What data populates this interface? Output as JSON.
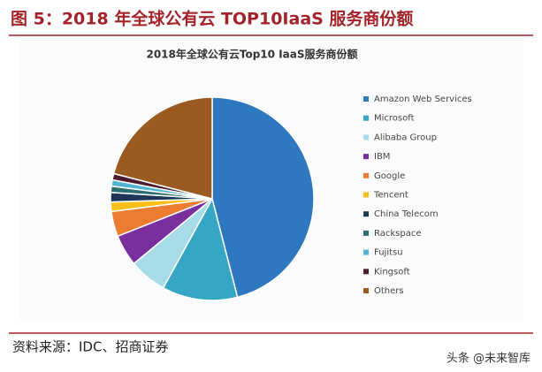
{
  "header": {
    "title": "图 5：2018 年全球公有云 TOP10IaaS 服务商份额"
  },
  "chart_data": {
    "type": "pie",
    "title": "2018年全球公有云Top10 IaaS服务商份额",
    "categories": [
      "Amazon Web Services",
      "Microsoft",
      "Alibaba Group",
      "IBM",
      "Google",
      "Tencent",
      "China Telecom",
      "Rackspace",
      "Fujitsu",
      "Kingsoft",
      "Others"
    ],
    "values": [
      46,
      12,
      6,
      5,
      4,
      1.5,
      1.5,
      1,
      1,
      1,
      21
    ],
    "colors": [
      "#2e78bf",
      "#35a6c4",
      "#a8dbe8",
      "#7a2f9e",
      "#ec7c30",
      "#fbbf1a",
      "#1f3558",
      "#2c6e73",
      "#52b5d2",
      "#4d1b2f",
      "#9b5a1f"
    ]
  },
  "footer": {
    "source": "资料来源：IDC、招商证券",
    "watermark": "头条 @未来智库"
  }
}
